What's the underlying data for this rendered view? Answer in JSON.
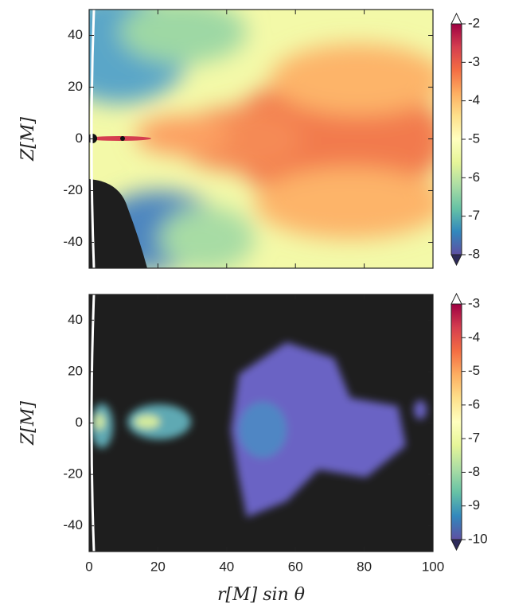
{
  "chart_data": [
    {
      "type": "heatmap",
      "ylabel": "Z[M]",
      "xlim": [
        0,
        100
      ],
      "xticks": [
        0,
        20,
        40,
        60,
        80,
        100
      ],
      "ylim": [
        -50,
        50
      ],
      "yticks": [
        -40,
        -20,
        0,
        20,
        40
      ],
      "clim": [
        -8,
        -2
      ],
      "cticks": [
        -8,
        -7,
        -6,
        -5,
        -4,
        -3,
        -2
      ],
      "colormap": [
        "#5e4fa2",
        "#3288bd",
        "#66c2a5",
        "#abdda4",
        "#e6f598",
        "#ffffbf",
        "#fee08b",
        "#fdae61",
        "#f46d43",
        "#d53e4f",
        "#9e0142"
      ]
    },
    {
      "type": "heatmap",
      "ylabel": "Z[M]",
      "xlabel": "r[M] sin θ",
      "xlim": [
        0,
        100
      ],
      "xticks": [
        0,
        20,
        40,
        60,
        80,
        100
      ],
      "ylim": [
        -50,
        50
      ],
      "yticks": [
        -40,
        -20,
        0,
        20,
        40
      ],
      "clim": [
        -10,
        -3
      ],
      "cticks": [
        -10,
        -9,
        -8,
        -7,
        -6,
        -5,
        -4,
        -3
      ],
      "colormap": [
        "#5e4fa2",
        "#3288bd",
        "#66c2a5",
        "#abdda4",
        "#e6f598",
        "#ffffbf",
        "#fee08b",
        "#fdae61",
        "#f46d43",
        "#d53e4f",
        "#9e0142"
      ]
    }
  ]
}
